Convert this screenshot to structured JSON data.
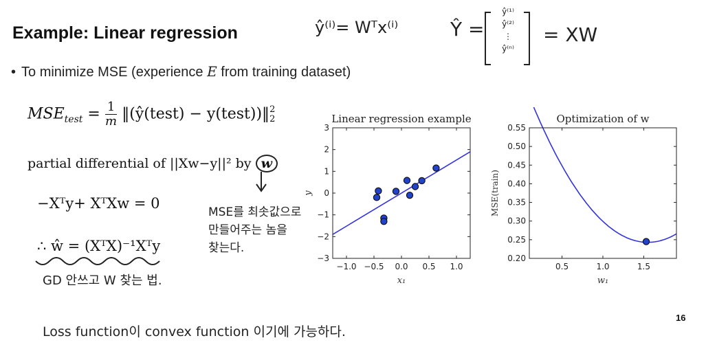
{
  "slide": {
    "title": "Example: Linear regression",
    "bullet_prefix": "To minimize MSE (experience ",
    "bullet_var": "E",
    "bullet_suffix": " from training dataset)",
    "page_number": "16"
  },
  "equations": {
    "mse_lhs": "MSE",
    "mse_sub": "test",
    "mse_frac_num": "1",
    "mse_frac_den": "m",
    "mse_body": "‖(ŷ(test) − y(test))‖",
    "mse_sup": "2",
    "mse_sub2": "2",
    "partial": "partial differential of ||Xw−y||² by",
    "partial_var": "w",
    "normal_eq": "−Xᵀy+ XᵀXw = 0",
    "solution": "∴ ŵ = (XᵀX)⁻¹Xᵀy"
  },
  "handwriting": {
    "yhat_i": "ŷ⁽ⁱ⁾= Wᵀx⁽ⁱ⁾",
    "Yhat": "Ŷ =",
    "Yhat_entries": [
      "ŷ⁽¹⁾",
      "ŷ⁽²⁾",
      "⋮",
      "ŷ⁽ⁿ⁾"
    ],
    "XW": "= XW",
    "note_line1": "MSE를 최솟값으로",
    "note_line2": "만들어주는 놈을",
    "note_line3": "찾는다.",
    "gd_note": "GD 안쓰고 W 찾는 법.",
    "loss_note": "Loss function이 convex function 이기에 가능하다."
  },
  "chart_data": [
    {
      "type": "scatter",
      "title": "Linear regression example",
      "xlabel": "x₁",
      "ylabel": "y",
      "xlim": [
        -1.25,
        1.25
      ],
      "ylim": [
        -3,
        3
      ],
      "xticks": [
        -1.0,
        -0.5,
        0.0,
        0.5,
        1.0
      ],
      "xtick_labels": [
        "−1.0",
        "−0.5",
        "0.0",
        "0.5",
        "1.0"
      ],
      "yticks": [
        -3,
        -2,
        -1,
        0,
        1,
        2,
        3
      ],
      "ytick_labels": [
        "−3",
        "−2",
        "−1",
        "0",
        "1",
        "2",
        "3"
      ],
      "points": [
        {
          "x": -0.45,
          "y": -0.2
        },
        {
          "x": -0.42,
          "y": 0.1
        },
        {
          "x": -0.32,
          "y": -1.15
        },
        {
          "x": -0.32,
          "y": -1.3
        },
        {
          "x": -0.1,
          "y": 0.08
        },
        {
          "x": 0.1,
          "y": 0.58
        },
        {
          "x": 0.15,
          "y": -0.1
        },
        {
          "x": 0.25,
          "y": 0.3
        },
        {
          "x": 0.37,
          "y": 0.57
        },
        {
          "x": 0.63,
          "y": 1.15
        }
      ],
      "fit_line": {
        "x": [
          -1.25,
          1.25
        ],
        "y": [
          -1.9,
          1.9
        ]
      },
      "line_color": "#3333dd",
      "point_color": "#2244cc"
    },
    {
      "type": "line",
      "title": "Optimization of w",
      "title_math": "w",
      "xlabel": "w₁",
      "ylabel": "MSE(train)",
      "xlim": [
        0.1,
        1.9
      ],
      "ylim": [
        0.2,
        0.55
      ],
      "xticks": [
        0.5,
        1.0,
        1.5
      ],
      "xtick_labels": [
        "0.5",
        "1.0",
        "1.5"
      ],
      "yticks": [
        0.2,
        0.25,
        0.3,
        0.35,
        0.4,
        0.45,
        0.5,
        0.55
      ],
      "ytick_labels": [
        "0.20",
        "0.25",
        "0.30",
        "0.35",
        "0.40",
        "0.45",
        "0.50",
        "0.55"
      ],
      "curve": {
        "a": 0.186,
        "vertex_x": 1.55,
        "vertex_y": 0.243
      },
      "minimum_point": {
        "x": 1.53,
        "y": 0.245
      },
      "line_color": "#3333dd",
      "point_color": "#2244cc"
    }
  ]
}
